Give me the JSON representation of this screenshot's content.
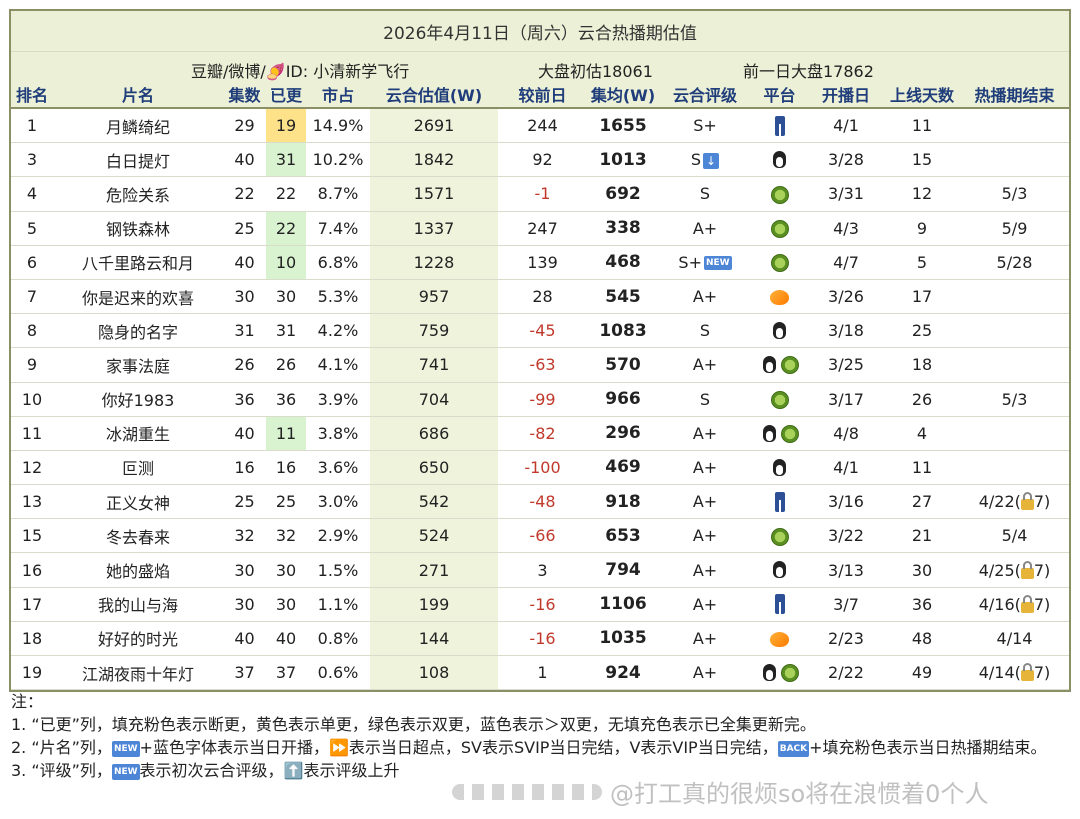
{
  "title": "2026年4月11日（周六）云合热播期估值",
  "meta": {
    "source": "豆瓣/微博/🍠ID: 小清新学飞行",
    "estimate": "大盘初估18061",
    "previous": "前一日大盘17862"
  },
  "headers": [
    "排名",
    "片名",
    "集数",
    "已更",
    "市占",
    "云合估值(W)",
    "较前日",
    "集均(W)",
    "云合评级",
    "平台",
    "开播日",
    "上线天数",
    "热播期结束"
  ],
  "colors": {
    "header_bg": "#ecf0d6",
    "header_text": "#1f3d7a",
    "negative": "#c0392b",
    "single_update": "#fde28a",
    "double_update": "#d9f3d0",
    "badge": "#4d86d6"
  },
  "rows": [
    {
      "rank": "1",
      "name": "月鳞绮纪",
      "eps": "29",
      "aired": "19",
      "aired_fill": "yellow",
      "share": "14.9%",
      "est": "2691",
      "diff": "244",
      "neg": false,
      "avg": "1655",
      "rating": "S+",
      "rating_badge": "",
      "platforms": [
        "iqiyi-icon"
      ],
      "start": "4/1",
      "days": "11",
      "end": "",
      "end_lock": ""
    },
    {
      "rank": "3",
      "name": "白日提灯",
      "eps": "40",
      "aired": "31",
      "aired_fill": "green",
      "share": "10.2%",
      "est": "1842",
      "diff": "92",
      "neg": false,
      "avg": "1013",
      "rating": "S",
      "rating_badge": "down",
      "platforms": [
        "tencent-icon"
      ],
      "start": "3/28",
      "days": "15",
      "end": "",
      "end_lock": ""
    },
    {
      "rank": "4",
      "name": "危险关系",
      "eps": "22",
      "aired": "22",
      "aired_fill": "",
      "share": "8.7%",
      "est": "1571",
      "diff": "-1",
      "neg": true,
      "avg": "692",
      "rating": "S",
      "rating_badge": "",
      "platforms": [
        "youku-icon"
      ],
      "start": "3/31",
      "days": "12",
      "end": "5/3",
      "end_lock": ""
    },
    {
      "rank": "5",
      "name": "钢铁森林",
      "eps": "25",
      "aired": "22",
      "aired_fill": "green",
      "share": "7.4%",
      "est": "1337",
      "diff": "247",
      "neg": false,
      "avg": "338",
      "rating": "A+",
      "rating_badge": "",
      "platforms": [
        "youku-icon"
      ],
      "start": "4/3",
      "days": "9",
      "end": "5/9",
      "end_lock": ""
    },
    {
      "rank": "6",
      "name": "八千里路云和月",
      "eps": "40",
      "aired": "10",
      "aired_fill": "green",
      "share": "6.8%",
      "est": "1228",
      "diff": "139",
      "neg": false,
      "avg": "468",
      "rating": "S+",
      "rating_badge": "NEW",
      "platforms": [
        "youku-icon"
      ],
      "start": "4/7",
      "days": "5",
      "end": "5/28",
      "end_lock": ""
    },
    {
      "rank": "7",
      "name": "你是迟来的欢喜",
      "eps": "30",
      "aired": "30",
      "aired_fill": "",
      "share": "5.3%",
      "est": "957",
      "diff": "28",
      "neg": false,
      "avg": "545",
      "rating": "A+",
      "rating_badge": "",
      "platforms": [
        "mango-icon"
      ],
      "start": "3/26",
      "days": "17",
      "end": "",
      "end_lock": ""
    },
    {
      "rank": "8",
      "name": "隐身的名字",
      "eps": "31",
      "aired": "31",
      "aired_fill": "",
      "share": "4.2%",
      "est": "759",
      "diff": "-45",
      "neg": true,
      "avg": "1083",
      "rating": "S",
      "rating_badge": "",
      "platforms": [
        "tencent-icon"
      ],
      "start": "3/18",
      "days": "25",
      "end": "",
      "end_lock": ""
    },
    {
      "rank": "9",
      "name": "家事法庭",
      "eps": "26",
      "aired": "26",
      "aired_fill": "",
      "share": "4.1%",
      "est": "741",
      "diff": "-63",
      "neg": true,
      "avg": "570",
      "rating": "A+",
      "rating_badge": "",
      "platforms": [
        "tencent-icon",
        "youku-icon"
      ],
      "start": "3/25",
      "days": "18",
      "end": "",
      "end_lock": ""
    },
    {
      "rank": "10",
      "name": "你好1983",
      "eps": "36",
      "aired": "36",
      "aired_fill": "",
      "share": "3.9%",
      "est": "704",
      "diff": "-99",
      "neg": true,
      "avg": "966",
      "rating": "S",
      "rating_badge": "",
      "platforms": [
        "youku-icon"
      ],
      "start": "3/17",
      "days": "26",
      "end": "5/3",
      "end_lock": ""
    },
    {
      "rank": "11",
      "name": "冰湖重生",
      "eps": "40",
      "aired": "11",
      "aired_fill": "green",
      "share": "3.8%",
      "est": "686",
      "diff": "-82",
      "neg": true,
      "avg": "296",
      "rating": "A+",
      "rating_badge": "",
      "platforms": [
        "tencent-icon",
        "youku-icon"
      ],
      "start": "4/8",
      "days": "4",
      "end": "",
      "end_lock": ""
    },
    {
      "rank": "12",
      "name": "叵测",
      "eps": "16",
      "aired": "16",
      "aired_fill": "",
      "share": "3.6%",
      "est": "650",
      "diff": "-100",
      "neg": true,
      "avg": "469",
      "rating": "A+",
      "rating_badge": "",
      "platforms": [
        "tencent-icon"
      ],
      "start": "4/1",
      "days": "11",
      "end": "",
      "end_lock": ""
    },
    {
      "rank": "13",
      "name": "正义女神",
      "eps": "25",
      "aired": "25",
      "aired_fill": "",
      "share": "3.0%",
      "est": "542",
      "diff": "-48",
      "neg": true,
      "avg": "918",
      "rating": "A+",
      "rating_badge": "",
      "platforms": [
        "iqiyi-icon"
      ],
      "start": "3/16",
      "days": "27",
      "end": "4/22(",
      "end_lock": "7)"
    },
    {
      "rank": "15",
      "name": "冬去春来",
      "eps": "32",
      "aired": "32",
      "aired_fill": "",
      "share": "2.9%",
      "est": "524",
      "diff": "-66",
      "neg": true,
      "avg": "653",
      "rating": "A+",
      "rating_badge": "",
      "platforms": [
        "youku-icon"
      ],
      "start": "3/22",
      "days": "21",
      "end": "5/4",
      "end_lock": ""
    },
    {
      "rank": "16",
      "name": "她的盛焰",
      "eps": "30",
      "aired": "30",
      "aired_fill": "",
      "share": "1.5%",
      "est": "271",
      "diff": "3",
      "neg": false,
      "avg": "794",
      "rating": "A+",
      "rating_badge": "",
      "platforms": [
        "tencent-icon"
      ],
      "start": "3/13",
      "days": "30",
      "end": "4/25(",
      "end_lock": "7)"
    },
    {
      "rank": "17",
      "name": "我的山与海",
      "eps": "30",
      "aired": "30",
      "aired_fill": "",
      "share": "1.1%",
      "est": "199",
      "diff": "-16",
      "neg": true,
      "avg": "1106",
      "rating": "A+",
      "rating_badge": "",
      "platforms": [
        "iqiyi-icon"
      ],
      "start": "3/7",
      "days": "36",
      "end": "4/16(",
      "end_lock": "7)"
    },
    {
      "rank": "18",
      "name": "好好的时光",
      "eps": "40",
      "aired": "40",
      "aired_fill": "",
      "share": "0.8%",
      "est": "144",
      "diff": "-16",
      "neg": true,
      "avg": "1035",
      "rating": "A+",
      "rating_badge": "",
      "platforms": [
        "mango-icon"
      ],
      "start": "2/23",
      "days": "48",
      "end": "4/14",
      "end_lock": ""
    },
    {
      "rank": "19",
      "name": "江湖夜雨十年灯",
      "eps": "37",
      "aired": "37",
      "aired_fill": "",
      "share": "0.6%",
      "est": "108",
      "diff": "1",
      "neg": false,
      "avg": "924",
      "rating": "A+",
      "rating_badge": "",
      "platforms": [
        "tencent-icon",
        "youku-icon"
      ],
      "start": "2/22",
      "days": "49",
      "end": "4/14(",
      "end_lock": "7)"
    }
  ],
  "notes": {
    "heading": "注：",
    "line1": "1. “已更”列，填充粉色表示断更，黄色表示单更，绿色表示双更，蓝色表示＞双更，无填充色表示已全集更新完。",
    "line2_a": "2. “片名”列，",
    "line2_badge": "NEW",
    "line2_b": "+蓝色字体表示当日开播，⏩表示当日超点，SV表示SVIP当日完结，V表示VIP当日完结，",
    "line2_badge2": "BACK",
    "line2_c": "+填充粉色表示当日热播期结束。",
    "line3_a": "3. “评级”列，",
    "line3_badge": "NEW",
    "line3_b": "表示初次云合评级，⬆️表示评级上升",
    "watermark": "@打工真的很烦so将在浪惯着0个人"
  }
}
